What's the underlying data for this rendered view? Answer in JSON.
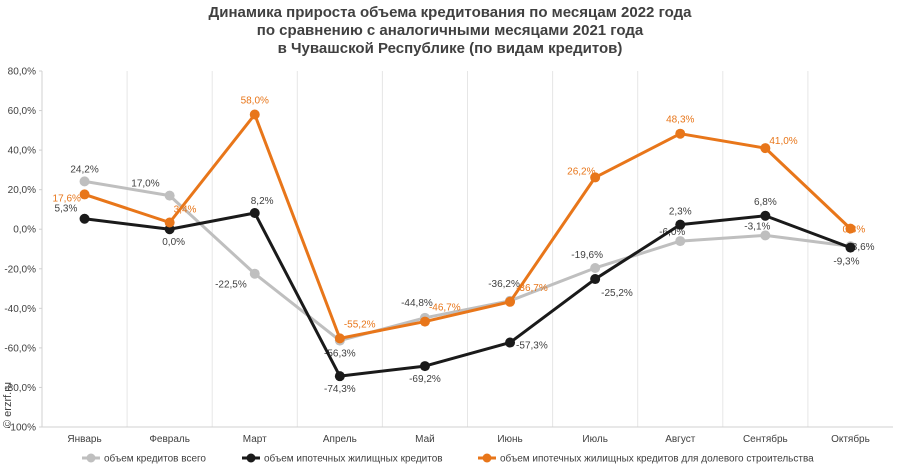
{
  "title_lines": [
    "Динамика прироста объема кредитования по месяцам 2022 года",
    "по сравнению с аналогичными месяцами 2021 года",
    "в Чувашской Республике (по видам кредитов)"
  ],
  "watermark": "© erzrf.ru",
  "chart_data": {
    "type": "line",
    "categories": [
      "Январь",
      "Февраль",
      "Март",
      "Апрель",
      "Май",
      "Июнь",
      "Июль",
      "Август",
      "Сентябрь",
      "Октябрь"
    ],
    "ylim": [
      -100,
      80
    ],
    "yticks": [
      -100,
      -80,
      -60,
      -40,
      -20,
      0,
      20,
      40,
      60,
      80
    ],
    "ytick_labels": [
      "-100%",
      "-80,0%",
      "-60,0%",
      "-40,0%",
      "-20,0%",
      "0,0%",
      "20,0%",
      "40,0%",
      "60,0%",
      "80,0%"
    ],
    "grid": "vertical",
    "legend_position": "bottom",
    "series": [
      {
        "name": "объем кредитов всего",
        "color": "#bfbfbf",
        "values": [
          24.2,
          17.0,
          -22.5,
          -56.3,
          -44.8,
          -36.2,
          -19.6,
          -6.0,
          -3.1,
          -8.6
        ],
        "labels": [
          "24,2%",
          "17,0%",
          "-22,5%",
          "-56,3%",
          "-44,8%",
          "-36,2%",
          "-19,6%",
          "-6,0%",
          "-3,1%",
          "-8,6%"
        ]
      },
      {
        "name": "объем ипотечных жилищных кредитов",
        "color": "#1a1a1a",
        "values": [
          5.3,
          0.0,
          8.2,
          -74.3,
          -69.2,
          -57.3,
          -25.2,
          2.3,
          6.8,
          -9.3
        ],
        "labels": [
          "5,3%",
          "0,0%",
          "8,2%",
          "-74,3%",
          "-69,2%",
          "-57,3%",
          "-25,2%",
          "2,3%",
          "6,8%",
          "-9,3%"
        ]
      },
      {
        "name": "объем ипотечных жилищных кредитов для долевого строительства",
        "color": "#e8761a",
        "values": [
          17.6,
          3.4,
          58.0,
          -55.2,
          -46.7,
          -36.7,
          26.2,
          48.3,
          41.0,
          0.3
        ],
        "labels": [
          "17,6%",
          "3,4%",
          "58,0%",
          "-55,2%",
          "-46,7%",
          "-36,7%",
          "26,2%",
          "48,3%",
          "41,0%",
          "0,3%"
        ]
      }
    ]
  }
}
